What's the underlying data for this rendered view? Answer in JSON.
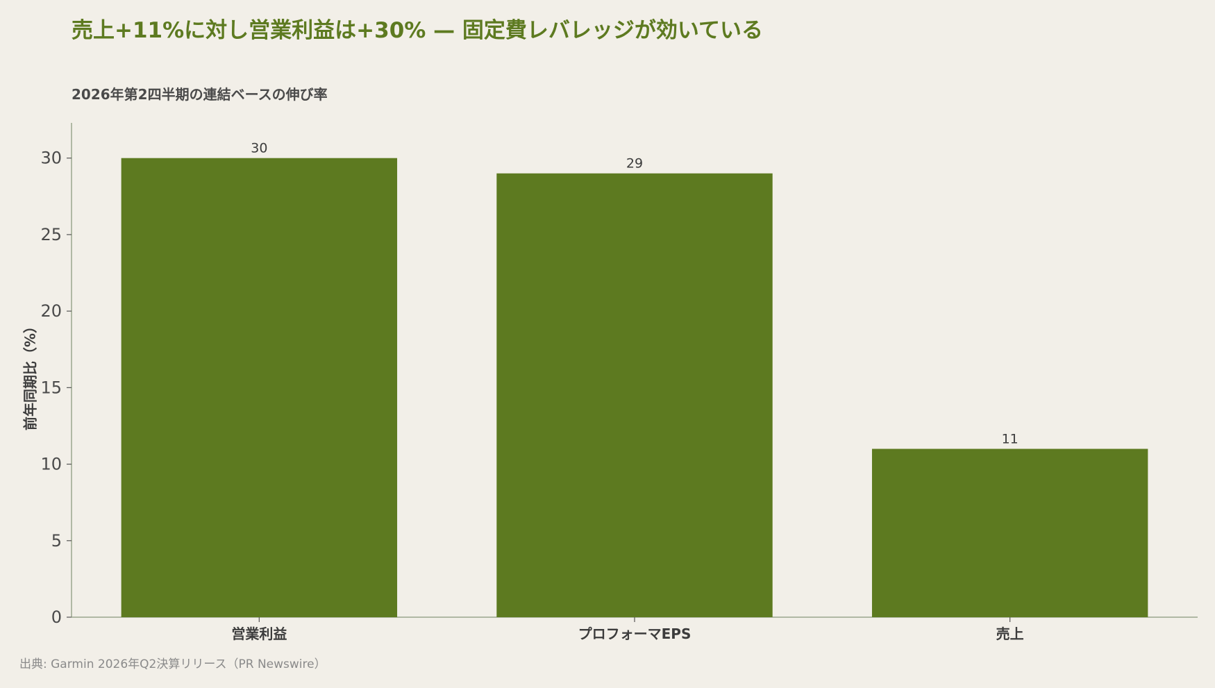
{
  "header": {
    "title": "売上+11%に対し営業利益は+30% — 固定費レバレッジが効いている",
    "subtitle": "2026年第2四半期の連結ベースの伸び率"
  },
  "footer": {
    "source": "出典: Garmin 2026年Q2決算リリース（PR Newswire）"
  },
  "colors": {
    "bar": "#5d7a20",
    "title": "#5d7a20",
    "axis": "#9aa58e",
    "background": "#f2efe8"
  },
  "chart_data": {
    "type": "bar",
    "categories": [
      "営業利益",
      "プロフォーマEPS",
      "売上"
    ],
    "values": [
      30,
      29,
      11
    ],
    "data_labels": [
      "30",
      "29",
      "11"
    ],
    "title": "売上+11%に対し営業利益は+30% — 固定費レバレッジが効いている",
    "subtitle": "2026年第2四半期の連結ベースの伸び率",
    "xlabel": "",
    "ylabel": "前年同期比（%）",
    "ylim": [
      0,
      32.3
    ],
    "yticks": [
      0,
      5,
      10,
      15,
      20,
      25,
      30
    ],
    "grid": false,
    "legend": "none"
  }
}
